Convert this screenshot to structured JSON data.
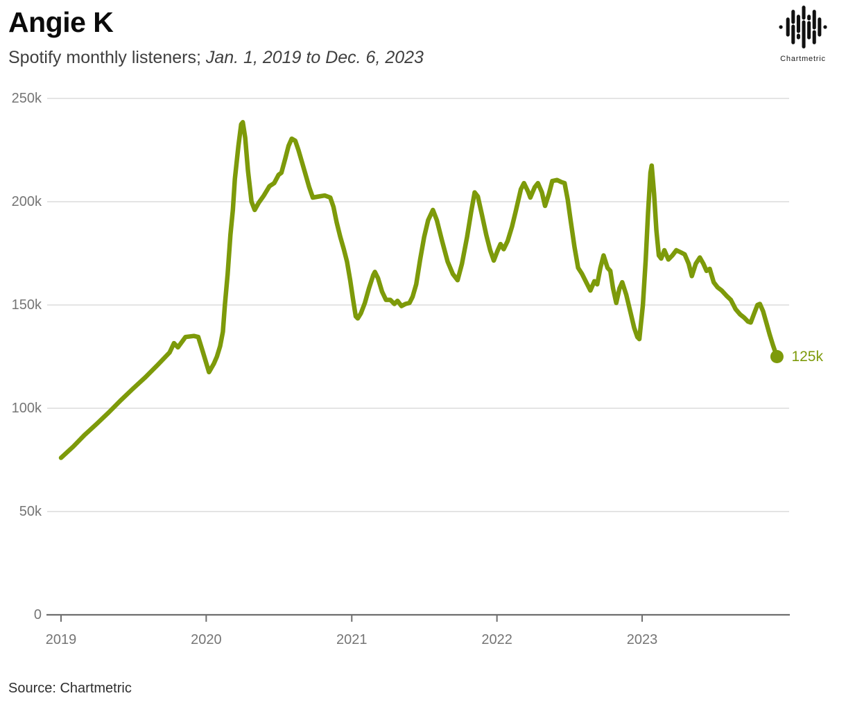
{
  "header": {
    "title": "Angie K",
    "subtitle_plain": "Spotify monthly listeners; ",
    "subtitle_italic": "Jan. 1, 2019 to Dec. 6, 2023"
  },
  "logo": {
    "brand": "Chartmetric"
  },
  "footer": {
    "source": "Source: Chartmetric"
  },
  "chart_data": {
    "type": "line",
    "title": "Angie K",
    "subtitle": "Spotify monthly listeners; Jan. 1, 2019 to Dec. 6, 2023",
    "unit": "listeners (values in thousands)",
    "legend_position": "none",
    "grid": "horizontal-only",
    "colors": {
      "line": "#7d9a0a",
      "grid": "#e4e4e4",
      "axis": "#6e6e6e",
      "tick_text": "#757575"
    },
    "x_axis": {
      "range": [
        "2019-01-01",
        "2023-12-06"
      ],
      "ticks": [
        {
          "label": "2019",
          "date": "2019-01-01"
        },
        {
          "label": "2020",
          "date": "2020-01-01"
        },
        {
          "label": "2021",
          "date": "2021-01-01"
        },
        {
          "label": "2022",
          "date": "2022-01-01"
        },
        {
          "label": "2023",
          "date": "2023-01-01"
        }
      ]
    },
    "y_axis": {
      "range": [
        0,
        250
      ],
      "ticks": [
        {
          "label": "0",
          "value": 0
        },
        {
          "label": "50k",
          "value": 50
        },
        {
          "label": "100k",
          "value": 100
        },
        {
          "label": "150k",
          "value": 150
        },
        {
          "label": "200k",
          "value": 200
        },
        {
          "label": "250k",
          "value": 250
        }
      ]
    },
    "end_label": "125k",
    "end_point": {
      "date": "2023-12-06",
      "value": 125
    },
    "series": [
      {
        "name": "Spotify monthly listeners",
        "color": "#7d9a0a",
        "points": [
          [
            "2019-01-01",
            76
          ],
          [
            "2019-02-01",
            81.5
          ],
          [
            "2019-03-01",
            87
          ],
          [
            "2019-04-01",
            92.5
          ],
          [
            "2019-05-01",
            98
          ],
          [
            "2019-06-01",
            104
          ],
          [
            "2019-07-01",
            109.5
          ],
          [
            "2019-08-01",
            115
          ],
          [
            "2019-09-01",
            121
          ],
          [
            "2019-10-01",
            127
          ],
          [
            "2019-10-12",
            131.5
          ],
          [
            "2019-10-22",
            129.5
          ],
          [
            "2019-11-10",
            134.5
          ],
          [
            "2019-12-01",
            135
          ],
          [
            "2019-12-12",
            134.5
          ],
          [
            "2019-12-24",
            127
          ],
          [
            "2020-01-08",
            117.5
          ],
          [
            "2020-01-20",
            121.5
          ],
          [
            "2020-01-28",
            125
          ],
          [
            "2020-02-05",
            130
          ],
          [
            "2020-02-12",
            137
          ],
          [
            "2020-02-17",
            150
          ],
          [
            "2020-02-24",
            165
          ],
          [
            "2020-03-02",
            184
          ],
          [
            "2020-03-08",
            196
          ],
          [
            "2020-03-13",
            211
          ],
          [
            "2020-03-22",
            227
          ],
          [
            "2020-03-29",
            237.5
          ],
          [
            "2020-04-02",
            238.5
          ],
          [
            "2020-04-08",
            231
          ],
          [
            "2020-04-15",
            215
          ],
          [
            "2020-04-24",
            200
          ],
          [
            "2020-05-02",
            196
          ],
          [
            "2020-05-12",
            199.5
          ],
          [
            "2020-05-25",
            203
          ],
          [
            "2020-06-08",
            207.5
          ],
          [
            "2020-06-20",
            209
          ],
          [
            "2020-07-01",
            213
          ],
          [
            "2020-07-08",
            214
          ],
          [
            "2020-07-18",
            221
          ],
          [
            "2020-07-26",
            227
          ],
          [
            "2020-08-03",
            230.5
          ],
          [
            "2020-08-12",
            229.5
          ],
          [
            "2020-08-20",
            225
          ],
          [
            "2020-08-29",
            219
          ],
          [
            "2020-09-07",
            213
          ],
          [
            "2020-09-16",
            207
          ],
          [
            "2020-09-25",
            202
          ],
          [
            "2020-10-10",
            202.5
          ],
          [
            "2020-10-25",
            203
          ],
          [
            "2020-11-08",
            202
          ],
          [
            "2020-11-16",
            197.5
          ],
          [
            "2020-11-24",
            190
          ],
          [
            "2020-12-03",
            183
          ],
          [
            "2020-12-12",
            177
          ],
          [
            "2020-12-20",
            171
          ],
          [
            "2020-12-28",
            162
          ],
          [
            "2021-01-04",
            153
          ],
          [
            "2021-01-11",
            144.5
          ],
          [
            "2021-01-16",
            143.5
          ],
          [
            "2021-01-24",
            146
          ],
          [
            "2021-02-03",
            151
          ],
          [
            "2021-02-13",
            158
          ],
          [
            "2021-02-24",
            164.5
          ],
          [
            "2021-02-28",
            166
          ],
          [
            "2021-03-08",
            163
          ],
          [
            "2021-03-18",
            156.5
          ],
          [
            "2021-03-28",
            152.5
          ],
          [
            "2021-04-08",
            152.5
          ],
          [
            "2021-04-18",
            150.5
          ],
          [
            "2021-04-26",
            152
          ],
          [
            "2021-05-06",
            149.5
          ],
          [
            "2021-05-16",
            150.5
          ],
          [
            "2021-05-26",
            151
          ],
          [
            "2021-06-03",
            154
          ],
          [
            "2021-06-12",
            160
          ],
          [
            "2021-06-22",
            172
          ],
          [
            "2021-07-02",
            183
          ],
          [
            "2021-07-12",
            191
          ],
          [
            "2021-07-24",
            196
          ],
          [
            "2021-08-03",
            191
          ],
          [
            "2021-08-16",
            181
          ],
          [
            "2021-08-30",
            171
          ],
          [
            "2021-09-12",
            165
          ],
          [
            "2021-09-24",
            162
          ],
          [
            "2021-10-05",
            170
          ],
          [
            "2021-10-18",
            183
          ],
          [
            "2021-10-28",
            195
          ],
          [
            "2021-11-06",
            204.5
          ],
          [
            "2021-11-14",
            202.5
          ],
          [
            "2021-11-24",
            194
          ],
          [
            "2021-12-05",
            184
          ],
          [
            "2021-12-15",
            176.5
          ],
          [
            "2021-12-24",
            171.5
          ],
          [
            "2022-01-02",
            176
          ],
          [
            "2022-01-10",
            179.5
          ],
          [
            "2022-01-18",
            177
          ],
          [
            "2022-01-28",
            181
          ],
          [
            "2022-02-08",
            188
          ],
          [
            "2022-02-18",
            196
          ],
          [
            "2022-03-02",
            206
          ],
          [
            "2022-03-10",
            209
          ],
          [
            "2022-03-20",
            205
          ],
          [
            "2022-03-26",
            202
          ],
          [
            "2022-04-06",
            207
          ],
          [
            "2022-04-14",
            209
          ],
          [
            "2022-04-24",
            204.5
          ],
          [
            "2022-05-02",
            198
          ],
          [
            "2022-05-12",
            204
          ],
          [
            "2022-05-20",
            210
          ],
          [
            "2022-06-01",
            210.5
          ],
          [
            "2022-06-12",
            209.5
          ],
          [
            "2022-06-20",
            209
          ],
          [
            "2022-06-28",
            201
          ],
          [
            "2022-07-06",
            190
          ],
          [
            "2022-07-15",
            178
          ],
          [
            "2022-07-24",
            168
          ],
          [
            "2022-08-03",
            165
          ],
          [
            "2022-08-12",
            161.5
          ],
          [
            "2022-08-24",
            157
          ],
          [
            "2022-09-03",
            161.5
          ],
          [
            "2022-09-10",
            160
          ],
          [
            "2022-09-18",
            168
          ],
          [
            "2022-09-26",
            174
          ],
          [
            "2022-10-06",
            168
          ],
          [
            "2022-10-13",
            166.5
          ],
          [
            "2022-10-20",
            158
          ],
          [
            "2022-10-28",
            151
          ],
          [
            "2022-11-05",
            158
          ],
          [
            "2022-11-12",
            161
          ],
          [
            "2022-11-22",
            155
          ],
          [
            "2022-12-02",
            147
          ],
          [
            "2022-12-12",
            139
          ],
          [
            "2022-12-20",
            134.5
          ],
          [
            "2022-12-25",
            133.5
          ],
          [
            "2023-01-03",
            150
          ],
          [
            "2023-01-10",
            172
          ],
          [
            "2023-01-16",
            195
          ],
          [
            "2023-01-22",
            214
          ],
          [
            "2023-01-25",
            217.5
          ],
          [
            "2023-01-31",
            204
          ],
          [
            "2023-02-06",
            186
          ],
          [
            "2023-02-12",
            174
          ],
          [
            "2023-02-18",
            172.5
          ],
          [
            "2023-02-26",
            176.5
          ],
          [
            "2023-03-08",
            172
          ],
          [
            "2023-03-18",
            174
          ],
          [
            "2023-03-28",
            176.5
          ],
          [
            "2023-04-08",
            175.5
          ],
          [
            "2023-04-18",
            174.5
          ],
          [
            "2023-04-28",
            170
          ],
          [
            "2023-05-06",
            164
          ],
          [
            "2023-05-16",
            170
          ],
          [
            "2023-05-26",
            173
          ],
          [
            "2023-06-04",
            170
          ],
          [
            "2023-06-12",
            166.5
          ],
          [
            "2023-06-20",
            167.5
          ],
          [
            "2023-06-30",
            161
          ],
          [
            "2023-07-10",
            158.5
          ],
          [
            "2023-07-20",
            157
          ],
          [
            "2023-08-01",
            154.5
          ],
          [
            "2023-08-12",
            152.5
          ],
          [
            "2023-08-24",
            148
          ],
          [
            "2023-09-04",
            145.5
          ],
          [
            "2023-09-14",
            144
          ],
          [
            "2023-09-24",
            142
          ],
          [
            "2023-10-01",
            141.5
          ],
          [
            "2023-10-10",
            146
          ],
          [
            "2023-10-18",
            150
          ],
          [
            "2023-10-24",
            150.5
          ],
          [
            "2023-11-01",
            147
          ],
          [
            "2023-11-10",
            141
          ],
          [
            "2023-11-18",
            135.5
          ],
          [
            "2023-11-26",
            130.5
          ],
          [
            "2023-12-06",
            125
          ]
        ]
      }
    ]
  }
}
